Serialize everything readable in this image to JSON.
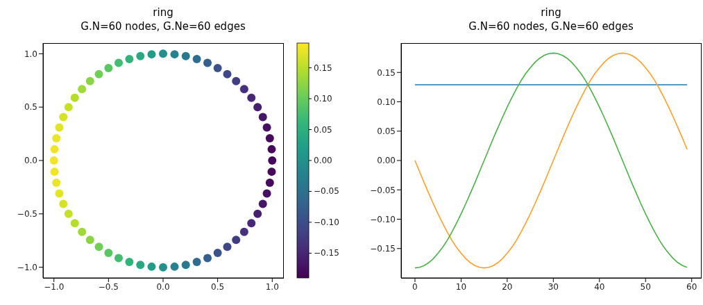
{
  "chart_data": [
    {
      "type": "scatter",
      "title": "ring",
      "subtitle": "G.N=60 nodes, G.Ne=60 edges",
      "marker": "circle",
      "x": [
        1,
        0.995,
        0.978,
        0.951,
        0.914,
        0.866,
        0.809,
        0.743,
        0.669,
        0.588,
        0.5,
        0.407,
        0.309,
        0.208,
        0.105,
        0,
        -0.105,
        -0.208,
        -0.309,
        -0.407,
        -0.5,
        -0.588,
        -0.669,
        -0.743,
        -0.809,
        -0.866,
        -0.914,
        -0.951,
        -0.978,
        -0.995,
        -1,
        -0.995,
        -0.978,
        -0.951,
        -0.914,
        -0.866,
        -0.809,
        -0.743,
        -0.669,
        -0.588,
        -0.5,
        -0.407,
        -0.309,
        -0.208,
        -0.105,
        0,
        0.105,
        0.208,
        0.309,
        0.407,
        0.5,
        0.588,
        0.669,
        0.743,
        0.809,
        0.866,
        0.914,
        0.951,
        0.978,
        0.995
      ],
      "values": [
        0,
        0.105,
        0.208,
        0.309,
        0.407,
        0.5,
        0.588,
        0.669,
        0.743,
        0.809,
        0.866,
        0.914,
        0.951,
        0.978,
        0.995,
        1,
        0.995,
        0.978,
        0.951,
        0.914,
        0.866,
        0.809,
        0.743,
        0.669,
        0.588,
        0.5,
        0.407,
        0.309,
        0.208,
        0.105,
        0,
        -0.105,
        -0.208,
        -0.309,
        -0.407,
        -0.5,
        -0.588,
        -0.669,
        -0.743,
        -0.809,
        -0.866,
        -0.914,
        -0.951,
        -0.978,
        -0.995,
        -1,
        -0.995,
        -0.978,
        -0.951,
        -0.914,
        -0.866,
        -0.809,
        -0.743,
        -0.669,
        -0.588,
        -0.5,
        -0.407,
        -0.309,
        -0.208,
        -0.105
      ],
      "cvalues": [
        -0.183,
        -0.182,
        -0.179,
        -0.174,
        -0.167,
        -0.158,
        -0.148,
        -0.136,
        -0.122,
        -0.107,
        -0.091,
        -0.074,
        -0.056,
        -0.038,
        -0.019,
        0,
        0.019,
        0.038,
        0.056,
        0.074,
        0.091,
        0.107,
        0.122,
        0.136,
        0.148,
        0.158,
        0.167,
        0.174,
        0.179,
        0.182,
        0.183,
        0.182,
        0.179,
        0.174,
        0.167,
        0.158,
        0.148,
        0.136,
        0.122,
        0.107,
        0.091,
        0.074,
        0.056,
        0.038,
        0.019,
        0,
        -0.019,
        -0.038,
        -0.056,
        -0.074,
        -0.091,
        -0.107,
        -0.122,
        -0.136,
        -0.148,
        -0.158,
        -0.167,
        -0.174,
        -0.179,
        -0.182
      ],
      "clim": [
        -0.19,
        0.19
      ],
      "cticks": [
        -0.15,
        {
          "value": -0.1,
          "label": "−0.10"
        },
        -0.05,
        {
          "value": 0,
          "label": "0.00"
        },
        0.05,
        {
          "value": 0.1,
          "label": "0.10"
        },
        0.15
      ],
      "xlim": [
        -1.1,
        1.1
      ],
      "xticks": [
        {
          "value": -1,
          "label": "−1.0"
        },
        -0.5,
        {
          "value": 0,
          "label": "0.0"
        },
        0.5,
        {
          "value": 1,
          "label": "1.0"
        }
      ],
      "ylim": [
        -1.1,
        1.1
      ],
      "yticks": [
        {
          "value": -1,
          "label": "−1.0"
        },
        -0.5,
        {
          "value": 0,
          "label": "0.0"
        },
        0.5,
        {
          "value": 1,
          "label": "1.0"
        }
      ]
    },
    {
      "type": "line",
      "title": "ring",
      "subtitle": "G.N=60 nodes, G.Ne=60 edges",
      "x": [
        0,
        1,
        2,
        3,
        4,
        5,
        6,
        7,
        8,
        9,
        10,
        11,
        12,
        13,
        14,
        15,
        16,
        17,
        18,
        19,
        20,
        21,
        22,
        23,
        24,
        25,
        26,
        27,
        28,
        29,
        30,
        31,
        32,
        33,
        34,
        35,
        36,
        37,
        38,
        39,
        40,
        41,
        42,
        43,
        44,
        45,
        46,
        47,
        48,
        49,
        50,
        51,
        52,
        53,
        54,
        55,
        56,
        57,
        58,
        59
      ],
      "series": [
        {
          "color": "#1f77b4",
          "values": [
            0.129,
            0.129,
            0.129,
            0.129,
            0.129,
            0.129,
            0.129,
            0.129,
            0.129,
            0.129,
            0.129,
            0.129,
            0.129,
            0.129,
            0.129,
            0.129,
            0.129,
            0.129,
            0.129,
            0.129,
            0.129,
            0.129,
            0.129,
            0.129,
            0.129,
            0.129,
            0.129,
            0.129,
            0.129,
            0.129,
            0.129,
            0.129,
            0.129,
            0.129,
            0.129,
            0.129,
            0.129,
            0.129,
            0.129,
            0.129,
            0.129,
            0.129,
            0.129,
            0.129,
            0.129,
            0.129,
            0.129,
            0.129,
            0.129,
            0.129,
            0.129,
            0.129,
            0.129,
            0.129,
            0.129,
            0.129,
            0.129,
            0.129,
            0.129,
            0.129
          ]
        },
        {
          "color": "#ff9f2e",
          "values": [
            0,
            -0.019,
            -0.038,
            -0.056,
            -0.074,
            -0.091,
            -0.107,
            -0.122,
            -0.136,
            -0.148,
            -0.158,
            -0.167,
            -0.174,
            -0.179,
            -0.182,
            -0.183,
            -0.182,
            -0.179,
            -0.174,
            -0.167,
            -0.158,
            -0.148,
            -0.136,
            -0.122,
            -0.107,
            -0.091,
            -0.074,
            -0.056,
            -0.038,
            -0.019,
            0,
            0.019,
            0.038,
            0.056,
            0.074,
            0.091,
            0.107,
            0.122,
            0.136,
            0.148,
            0.158,
            0.167,
            0.174,
            0.179,
            0.182,
            0.183,
            0.182,
            0.179,
            0.174,
            0.167,
            0.158,
            0.148,
            0.136,
            0.122,
            0.107,
            0.091,
            0.074,
            0.056,
            0.038,
            0.019
          ]
        },
        {
          "color": "#4daf4a",
          "values": [
            -0.183,
            -0.182,
            -0.179,
            -0.174,
            -0.167,
            -0.158,
            -0.148,
            -0.136,
            -0.122,
            -0.107,
            -0.091,
            -0.074,
            -0.056,
            -0.038,
            -0.019,
            0,
            0.019,
            0.038,
            0.056,
            0.074,
            0.091,
            0.107,
            0.122,
            0.136,
            0.148,
            0.158,
            0.167,
            0.174,
            0.179,
            0.182,
            0.183,
            0.182,
            0.179,
            0.174,
            0.167,
            0.158,
            0.148,
            0.136,
            0.122,
            0.107,
            0.091,
            0.074,
            0.056,
            0.038,
            0.019,
            0,
            -0.019,
            -0.038,
            -0.056,
            -0.074,
            -0.091,
            -0.107,
            -0.122,
            -0.136,
            -0.148,
            -0.158,
            -0.167,
            -0.174,
            -0.179,
            -0.182
          ]
        }
      ],
      "xlim": [
        -3,
        62
      ],
      "xticks": [
        0,
        10,
        20,
        30,
        40,
        50,
        60
      ],
      "ylim": [
        -0.2,
        0.2
      ],
      "yticks": [
        -0.15,
        {
          "value": -0.1,
          "label": "−0.10"
        },
        -0.05,
        {
          "value": 0,
          "label": "0.00"
        },
        0.05,
        {
          "value": 0.1,
          "label": "0.10"
        },
        0.15
      ]
    }
  ]
}
